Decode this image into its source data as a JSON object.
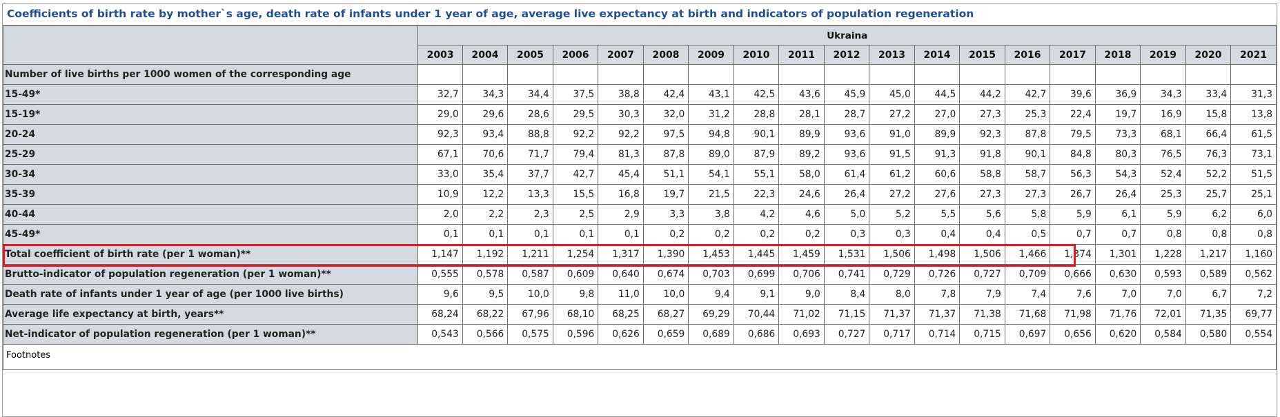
{
  "title": "Coefficients of birth rate by mother`s age, death rate of infants under 1 year of age, average live expectancy at birth and indicators of population regeneration",
  "country": "Ukraina",
  "years": [
    "2003",
    "2004",
    "2005",
    "2006",
    "2007",
    "2008",
    "2009",
    "2010",
    "2011",
    "2012",
    "2013",
    "2014",
    "2015",
    "2016",
    "2017",
    "2018",
    "2019",
    "2020",
    "2021"
  ],
  "rows": [
    {
      "label": "Number of live births per 1000 women of the corresponding age",
      "values": [
        "",
        "",
        "",
        "",
        "",
        "",
        "",
        "",
        "",
        "",
        "",
        "",
        "",
        "",
        "",
        "",
        "",
        "",
        ""
      ]
    },
    {
      "label": "15-49*",
      "values": [
        "32,7",
        "34,3",
        "34,4",
        "37,5",
        "38,8",
        "42,4",
        "43,1",
        "42,5",
        "43,6",
        "45,9",
        "45,0",
        "44,5",
        "44,2",
        "42,7",
        "39,6",
        "36,9",
        "34,3",
        "33,4",
        "31,3"
      ]
    },
    {
      "label": "15-19*",
      "values": [
        "29,0",
        "29,6",
        "28,6",
        "29,5",
        "30,3",
        "32,0",
        "31,2",
        "28,8",
        "28,1",
        "28,7",
        "27,2",
        "27,0",
        "27,3",
        "25,3",
        "22,4",
        "19,7",
        "16,9",
        "15,8",
        "13,8"
      ]
    },
    {
      "label": "20-24",
      "values": [
        "92,3",
        "93,4",
        "88,8",
        "92,2",
        "92,2",
        "97,5",
        "94,8",
        "90,1",
        "89,9",
        "93,6",
        "91,0",
        "89,9",
        "92,3",
        "87,8",
        "79,5",
        "73,3",
        "68,1",
        "66,4",
        "61,5"
      ]
    },
    {
      "label": "25-29",
      "values": [
        "67,1",
        "70,6",
        "71,7",
        "79,4",
        "81,3",
        "87,8",
        "89,0",
        "87,9",
        "89,2",
        "93,6",
        "91,5",
        "91,3",
        "91,8",
        "90,1",
        "84,8",
        "80,3",
        "76,5",
        "76,3",
        "73,1"
      ]
    },
    {
      "label": "30-34",
      "values": [
        "33,0",
        "35,4",
        "37,7",
        "42,7",
        "45,4",
        "51,1",
        "54,1",
        "55,1",
        "58,0",
        "61,4",
        "61,2",
        "60,6",
        "58,8",
        "58,7",
        "56,3",
        "54,3",
        "52,4",
        "52,2",
        "51,5"
      ]
    },
    {
      "label": "35-39",
      "values": [
        "10,9",
        "12,2",
        "13,3",
        "15,5",
        "16,8",
        "19,7",
        "21,5",
        "22,3",
        "24,6",
        "26,4",
        "27,2",
        "27,6",
        "27,3",
        "27,3",
        "26,7",
        "26,4",
        "25,3",
        "25,7",
        "25,1"
      ]
    },
    {
      "label": "40-44",
      "values": [
        "2,0",
        "2,2",
        "2,3",
        "2,5",
        "2,9",
        "3,3",
        "3,8",
        "4,2",
        "4,6",
        "5,0",
        "5,2",
        "5,5",
        "5,6",
        "5,8",
        "5,9",
        "6,1",
        "5,9",
        "6,2",
        "6,0"
      ]
    },
    {
      "label": "45-49*",
      "values": [
        "0,1",
        "0,1",
        "0,1",
        "0,1",
        "0,1",
        "0,2",
        "0,2",
        "0,2",
        "0,2",
        "0,3",
        "0,3",
        "0,4",
        "0,4",
        "0,5",
        "0,7",
        "0,7",
        "0,8",
        "0,8",
        "0,8"
      ]
    },
    {
      "label": "Total coefficient of birth rate (per 1 woman)**",
      "values": [
        "1,147",
        "1,192",
        "1,211",
        "1,254",
        "1,317",
        "1,390",
        "1,453",
        "1,445",
        "1,459",
        "1,531",
        "1,506",
        "1,498",
        "1,506",
        "1,466",
        "1,374",
        "1,301",
        "1,228",
        "1,217",
        "1,160"
      ]
    },
    {
      "label": "Brutto-indicator of population regeneration (per 1 woman)**",
      "values": [
        "0,555",
        "0,578",
        "0,587",
        "0,609",
        "0,640",
        "0,674",
        "0,703",
        "0,699",
        "0,706",
        "0,741",
        "0,729",
        "0,726",
        "0,727",
        "0,709",
        "0,666",
        "0,630",
        "0,593",
        "0,589",
        "0,562"
      ]
    },
    {
      "label": "Death rate of infants under 1 year of age (per 1000 live births)",
      "values": [
        "9,6",
        "9,5",
        "10,0",
        "9,8",
        "11,0",
        "10,0",
        "9,4",
        "9,1",
        "9,0",
        "8,4",
        "8,0",
        "7,8",
        "7,9",
        "7,4",
        "7,6",
        "7,0",
        "7,0",
        "6,7",
        "7,2"
      ]
    },
    {
      "label": "Average life expectancy at birth, years**",
      "values": [
        "68,24",
        "68,22",
        "67,96",
        "68,10",
        "68,25",
        "68,27",
        "69,29",
        "70,44",
        "71,02",
        "71,15",
        "71,37",
        "71,37",
        "71,38",
        "71,68",
        "71,98",
        "71,76",
        "72,01",
        "71,35",
        "69,77"
      ]
    },
    {
      "label": "Net-indicator of population regeneration (per 1 woman)**",
      "values": [
        "0,543",
        "0,566",
        "0,575",
        "0,596",
        "0,626",
        "0,659",
        "0,689",
        "0,686",
        "0,693",
        "0,727",
        "0,717",
        "0,714",
        "0,715",
        "0,697",
        "0,656",
        "0,620",
        "0,584",
        "0,580",
        "0,554"
      ]
    }
  ],
  "highlight_row_index": 9,
  "highlight_color": "#e01b22",
  "footnote": "Footnotes"
}
